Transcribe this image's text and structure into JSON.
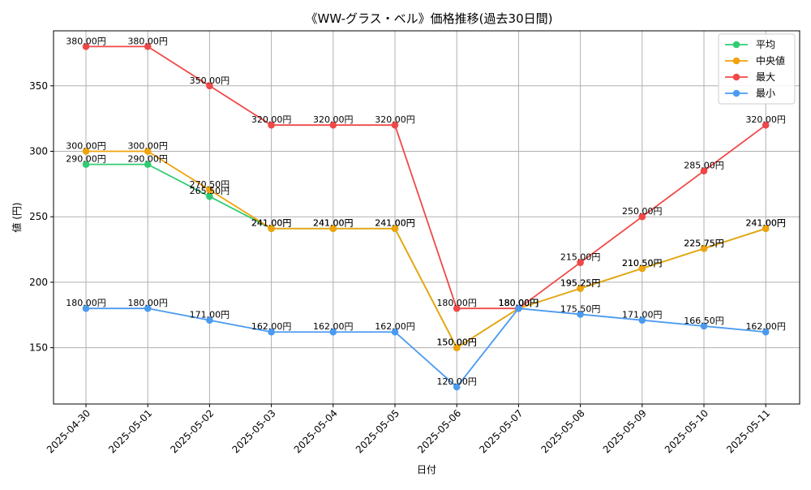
{
  "chart_data": {
    "type": "line",
    "title": "《WW-グラス・ベル》価格推移(過去30日間)",
    "xlabel": "日付",
    "ylabel": "値 (円)",
    "ylim": [
      107,
      392
    ],
    "yticks": [
      150,
      200,
      250,
      300,
      350
    ],
    "grid": true,
    "legend_position": "top-right",
    "categories": [
      "2025-04-30",
      "2025-05-01",
      "2025-05-02",
      "2025-05-03",
      "2025-05-04",
      "2025-05-05",
      "2025-05-06",
      "2025-05-07",
      "2025-05-08",
      "2025-05-09",
      "2025-05-10",
      "2025-05-11"
    ],
    "series": [
      {
        "name": "平均",
        "color": "#2ecc71",
        "values": [
          290,
          290,
          265.5,
          241,
          241,
          241,
          150,
          180,
          195.25,
          210.5,
          225.75,
          241
        ],
        "labels": [
          "290.00円",
          "290.00円",
          "265.50円",
          "241.00円",
          "241.00円",
          "241.00円",
          "150.00円",
          "180.00円",
          "195.25円",
          "210.50円",
          "225.75円",
          "241.00円"
        ]
      },
      {
        "name": "中央値",
        "color": "#f0a30a",
        "values": [
          300,
          300,
          270.5,
          241,
          241,
          241,
          150,
          180,
          195.25,
          210.5,
          225.75,
          241
        ],
        "labels": [
          "300.00円",
          "300.00円",
          "270.50円",
          "241.00円",
          "241.00円",
          "241.00円",
          "150.00円",
          "180.00円",
          "195.25円",
          "210.50円",
          "225.75円",
          "241.00円"
        ]
      },
      {
        "name": "最大",
        "color": "#f04848",
        "values": [
          380,
          380,
          350,
          320,
          320,
          320,
          180,
          180,
          215,
          250,
          285,
          320
        ],
        "labels": [
          "380.00円",
          "380.00円",
          "350.00円",
          "320.00円",
          "320.00円",
          "320.00円",
          "180.00円",
          "180.00円",
          "215.00円",
          "250.00円",
          "285.00円",
          "320.00円"
        ]
      },
      {
        "name": "最小",
        "color": "#4a9af0",
        "values": [
          180,
          180,
          171,
          162,
          162,
          162,
          120,
          180,
          175.5,
          171,
          166.5,
          162
        ],
        "labels": [
          "180.00円",
          "180.00円",
          "171.00円",
          "162.00円",
          "162.00円",
          "162.00円",
          "120.00円",
          "180.00円",
          "175.50円",
          "171.00円",
          "166.50円",
          "162.00円"
        ]
      }
    ]
  }
}
